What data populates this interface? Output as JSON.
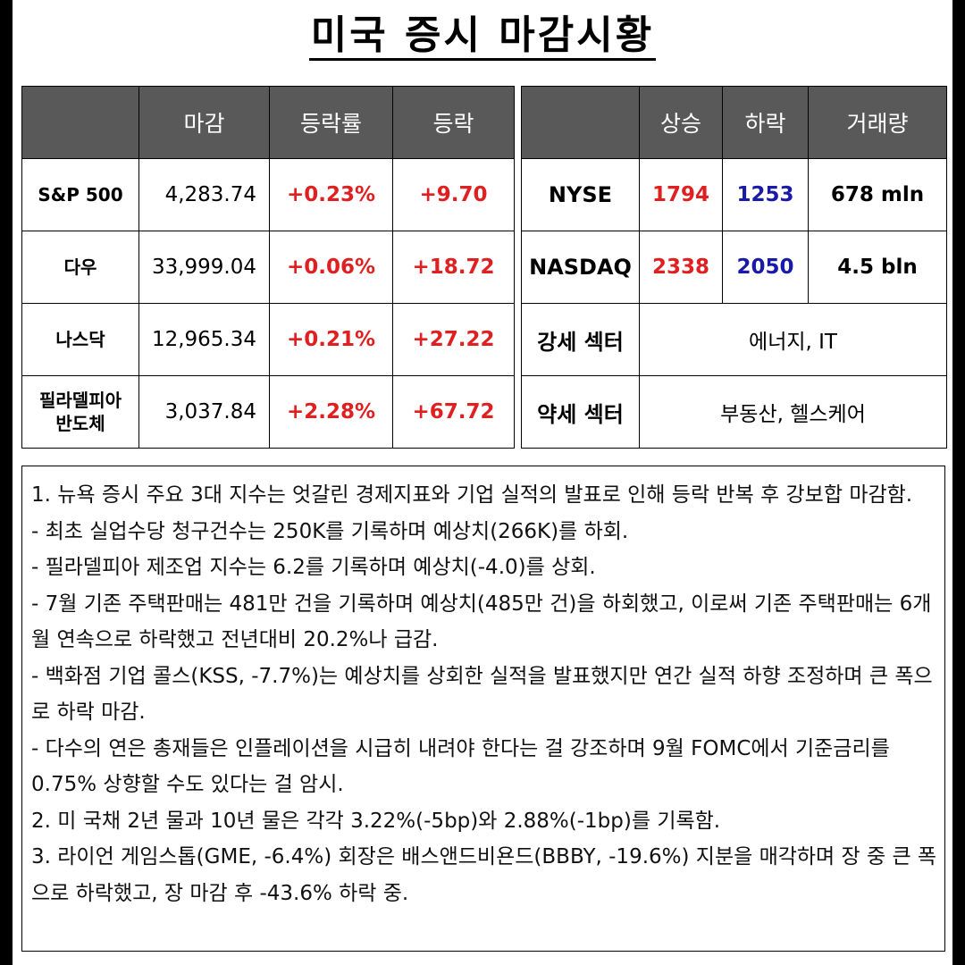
{
  "title": "미국 증시 마감시황",
  "indices": {
    "headers": [
      "",
      "마감",
      "등락률",
      "등락"
    ],
    "rows": [
      {
        "name": "S&P 500",
        "close": "4,283.74",
        "change_pct": "+0.23%",
        "change": "+9.70"
      },
      {
        "name": "다우",
        "close": "33,999.04",
        "change_pct": "+0.06%",
        "change": "+18.72"
      },
      {
        "name": "나스닥",
        "close": "12,965.34",
        "change_pct": "+0.21%",
        "change": "+27.22"
      },
      {
        "name_line1": "필라델피아",
        "name_line2": "반도체",
        "close": "3,037.84",
        "change_pct": "+2.28%",
        "change": "+67.72"
      }
    ]
  },
  "market": {
    "headers": [
      "",
      "상승",
      "하락",
      "거래량"
    ],
    "rows": [
      {
        "name": "NYSE",
        "up": "1794",
        "down": "1253",
        "volume": "678 mln"
      },
      {
        "name": "NASDAQ",
        "up": "2338",
        "down": "2050",
        "volume": "4.5 bln"
      }
    ],
    "strong_sector_label": "강세 섹터",
    "strong_sector_value": "에너지, IT",
    "weak_sector_label": "약세 섹터",
    "weak_sector_value": "부동산, 헬스케어"
  },
  "notes": [
    "1. 뉴욕 증시 주요 3대 지수는 엇갈린 경제지표와 기업 실적의 발표로 인해 등락 반복 후 강보합 마감함.",
    "- 최초 실업수당 청구건수는 250K를 기록하며 예상치(266K)를 하회.",
    "- 필라델피아 제조업 지수는 6.2를 기록하며 예상치(-4.0)를 상회.",
    "- 7월 기존 주택판매는 481만 건을 기록하며 예상치(485만 건)을 하회했고, 이로써 기존 주택판매는 6개월 연속으로 하락했고 전년대비 20.2%나 급감.",
    "- 백화점 기업 콜스(KSS, -7.7%)는 예상치를 상회한 실적을 발표했지만 연간 실적 하향 조정하며 큰 폭으로 하락 마감.",
    "- 다수의 연은 총재들은 인플레이션을 시급히 내려야 한다는 걸 강조하며 9월 FOMC에서 기준금리를 0.75% 상향할 수도 있다는 걸 암시.",
    "2. 미 국채 2년 물과 10년 물은 각각 3.22%(-5bp)와 2.88%(-1bp)를 기록함.",
    "3. 라이언 게임스톱(GME, -6.4%) 회장은 배스앤드비욘드(BBBY, -19.6%) 지분을 매각하며 장 중 큰 폭으로 하락했고, 장 마감 후 -43.6% 하락 중."
  ]
}
